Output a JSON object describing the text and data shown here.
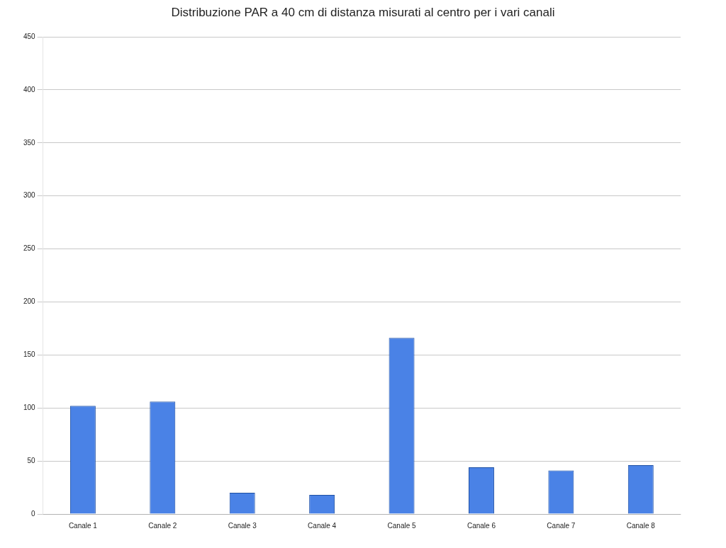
{
  "chart_data": {
    "type": "bar",
    "title": "Distribuzione PAR a 40 cm di distanza misurati al centro per i vari canali",
    "categories": [
      "Canale 1",
      "Canale 2",
      "Canale 3",
      "Canale 4",
      "Canale 5",
      "Canale 6",
      "Canale 7",
      "Canale 8"
    ],
    "values": [
      102,
      106,
      20,
      18,
      166,
      44,
      41,
      46
    ],
    "color": "#4a82e6",
    "ylim": [
      0,
      450
    ],
    "yticks": [
      0,
      50,
      100,
      150,
      200,
      250,
      300,
      350,
      400,
      450
    ],
    "grid": "y"
  }
}
